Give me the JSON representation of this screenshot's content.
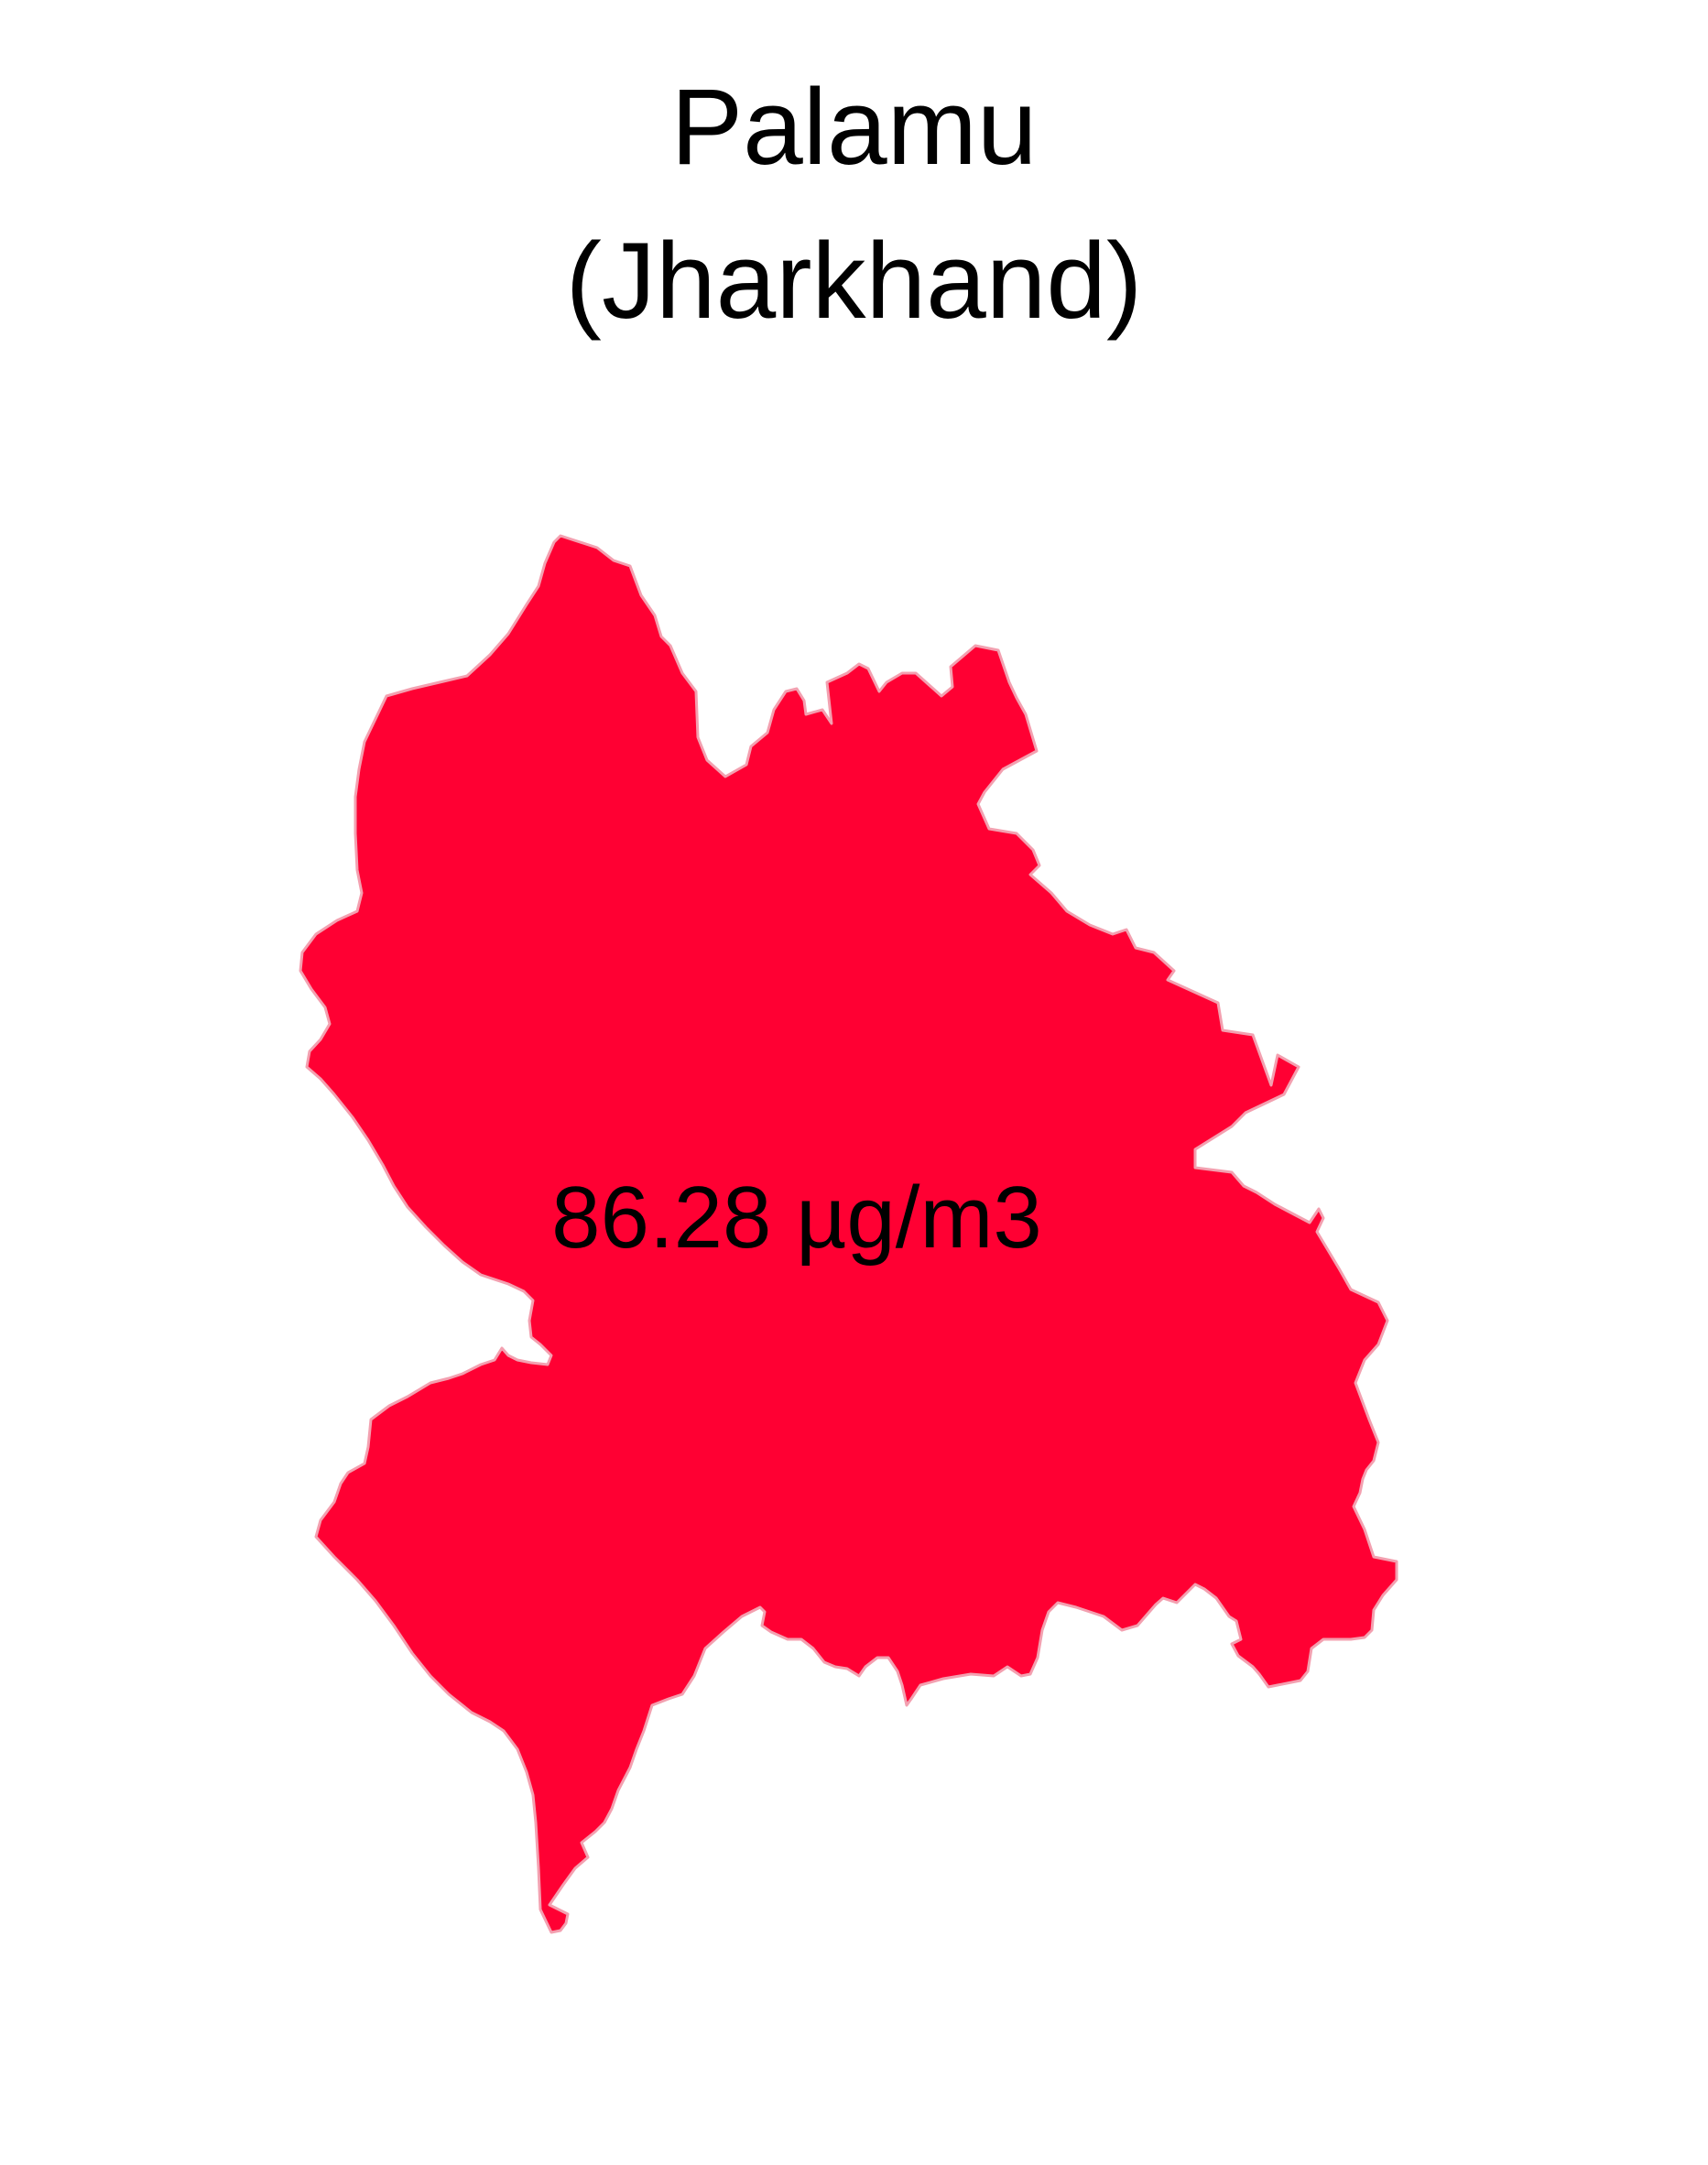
{
  "title": {
    "district": "Palamu",
    "state": "(Jharkhand)"
  },
  "map": {
    "region_value_label": "86.28 µg/m3",
    "fill_color": "#ff0033",
    "stroke_color": "#f3a0b0"
  }
}
